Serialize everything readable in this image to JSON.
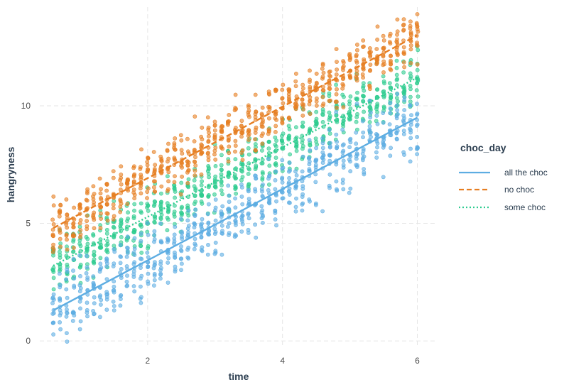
{
  "chart_data": {
    "type": "scatter",
    "title": "",
    "xlabel": "time",
    "ylabel": "hangryness",
    "xlim": [
      0.4,
      6.3
    ],
    "ylim": [
      -0.3,
      14.2
    ],
    "x_ticks": [
      2,
      4,
      6
    ],
    "y_ticks": [
      0,
      5,
      10
    ],
    "x_tick_labels": [
      "2",
      "4",
      "6"
    ],
    "y_tick_labels": [
      "0",
      "5",
      "10"
    ],
    "grid": true,
    "legend": {
      "title": "choc_day",
      "position": "right"
    },
    "series": [
      {
        "name": "all the choc",
        "color": "#5dade2",
        "line_style": "solid",
        "fit_line": {
          "x": [
            0.6,
            6.0
          ],
          "y": [
            1.3,
            9.5
          ]
        },
        "point_spread": 0.7
      },
      {
        "name": "no choc",
        "color": "#e67e22",
        "line_style": "dashed",
        "fit_line": {
          "x": [
            0.6,
            6.0
          ],
          "y": [
            4.8,
            13.0
          ]
        },
        "point_spread": 0.55
      },
      {
        "name": "some choc",
        "color": "#2ecc8f",
        "line_style": "dotted",
        "fit_line": {
          "x": [
            0.6,
            6.0
          ],
          "y": [
            3.2,
            11.2
          ]
        },
        "point_spread": 0.6
      }
    ],
    "x_points": [
      0.6,
      0.7,
      0.8,
      0.9,
      1.0,
      1.1,
      1.2,
      1.3,
      1.4,
      1.5,
      1.6,
      1.7,
      1.8,
      1.9,
      2.0,
      2.1,
      2.2,
      2.3,
      2.4,
      2.5,
      2.6,
      2.7,
      2.8,
      2.9,
      3.0,
      3.1,
      3.2,
      3.3,
      3.4,
      3.5,
      3.6,
      3.7,
      3.8,
      3.9,
      4.0,
      4.1,
      4.2,
      4.3,
      4.4,
      4.5,
      4.6,
      4.7,
      4.8,
      4.9,
      5.0,
      5.1,
      5.2,
      5.3,
      5.4,
      5.5,
      5.6,
      5.7,
      5.8,
      5.9,
      6.0
    ]
  }
}
